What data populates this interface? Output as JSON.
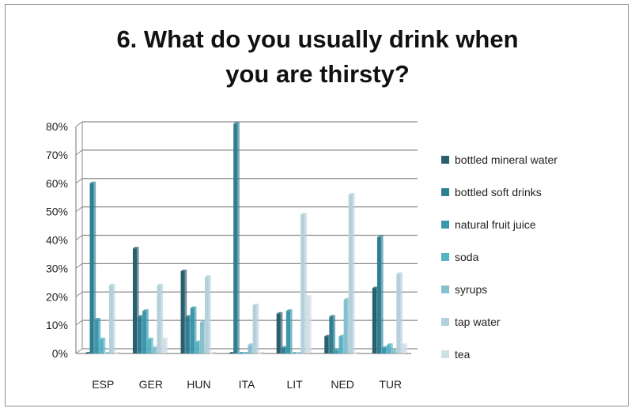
{
  "chart_data": {
    "type": "bar",
    "title": "6. What do you usually drink when you are thirsty?",
    "title_lines": [
      "6. What do you usually drink when",
      "you are thirsty?"
    ],
    "categories": [
      "ESP",
      "GER",
      "HUN",
      "ITA",
      "LIT",
      "NED",
      "TUR"
    ],
    "y_ticks": [
      "0%",
      "10%",
      "20%",
      "30%",
      "40%",
      "50%",
      "60%",
      "70%",
      "80%"
    ],
    "ylim": [
      0,
      80
    ],
    "grid": true,
    "legend_position": "right",
    "series": [
      {
        "name": "bottled mineral water",
        "color": "#2a5f6e",
        "values": [
          0,
          37,
          29,
          0,
          14,
          6,
          23
        ]
      },
      {
        "name": "bottled soft drinks",
        "color": "#2f7f93",
        "values": [
          60,
          13,
          13,
          81,
          2,
          13,
          41
        ]
      },
      {
        "name": "natural fruit juice",
        "color": "#3b97ab",
        "values": [
          12,
          15,
          16,
          0,
          15,
          1,
          2
        ]
      },
      {
        "name": "soda",
        "color": "#56b3c4",
        "values": [
          5,
          5,
          4,
          0,
          0,
          6,
          3
        ]
      },
      {
        "name": "syrups",
        "color": "#86c0cf",
        "values": [
          0,
          2,
          11,
          3,
          0,
          19,
          1
        ]
      },
      {
        "name": "tap water",
        "color": "#b4d1db",
        "values": [
          24,
          24,
          27,
          17,
          49,
          56,
          28
        ]
      },
      {
        "name": "tea",
        "color": "#cfdfe6",
        "values": [
          0,
          5,
          0,
          0,
          20,
          0,
          3
        ]
      }
    ]
  }
}
